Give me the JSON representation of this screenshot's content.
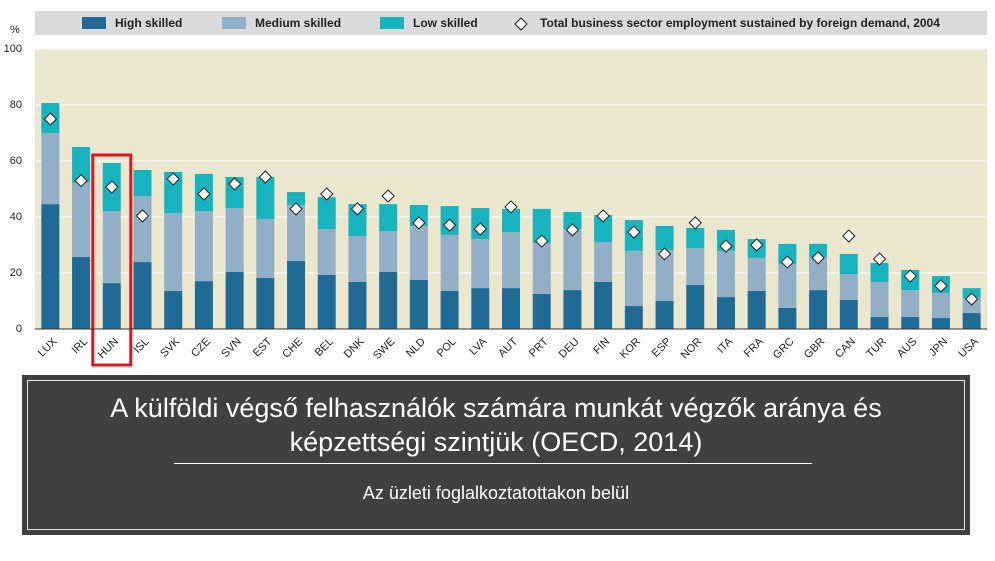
{
  "chart_data": {
    "type": "stacked_bar",
    "y_label": "%",
    "categories": [
      "LUX",
      "IRL",
      "HUN",
      "ISL",
      "SVK",
      "CZE",
      "SVN",
      "EST",
      "CHE",
      "BEL",
      "DNK",
      "SWE",
      "NLD",
      "POL",
      "LVA",
      "AUT",
      "PRT",
      "DEU",
      "FIN",
      "KOR",
      "ESP",
      "NOR",
      "ITA",
      "FRA",
      "GRC",
      "GBR",
      "CAN",
      "TUR",
      "AUS",
      "JPN",
      "USA"
    ],
    "series": [
      {
        "name": "High skilled",
        "color": "#1f6b96",
        "values": [
          44.6,
          25.7,
          16.4,
          23.9,
          13.6,
          17.1,
          20.4,
          18.2,
          24.3,
          19.3,
          16.8,
          20.4,
          17.5,
          13.6,
          14.6,
          14.6,
          12.5,
          13.9,
          16.8,
          8.2,
          10,
          15.7,
          11.4,
          13.6,
          7.5,
          13.9,
          10.4,
          4.3,
          4.3,
          3.9,
          5.7
        ]
      },
      {
        "name": "Medium skilled",
        "color": "#91afc6",
        "values": [
          25.4,
          26.5,
          25.7,
          23.6,
          27.8,
          25,
          22.8,
          21.1,
          20,
          16.4,
          16.4,
          14.6,
          19.3,
          20,
          17.5,
          20,
          18.2,
          21.8,
          14.3,
          19.7,
          18.2,
          13.2,
          16.5,
          11.8,
          15.7,
          11.8,
          9.2,
          12.5,
          9.6,
          9,
          5.4
        ]
      },
      {
        "name": "Low skilled",
        "color": "#17b3bf",
        "values": [
          10.7,
          12.8,
          17.2,
          9.3,
          14.7,
          13.3,
          11.1,
          15,
          4.6,
          11.4,
          11.4,
          9.6,
          7.5,
          10.3,
          11.1,
          8.3,
          12.2,
          6.1,
          9.6,
          11,
          8.6,
          7.2,
          7.5,
          6.7,
          7.2,
          4.7,
          7.2,
          6.8,
          7.2,
          6,
          3.5
        ]
      }
    ],
    "markers": {
      "name": "Total business sector employment sustained by foreign demand, 2004",
      "values": [
        75,
        53,
        50.7,
        40.4,
        53.6,
        48.2,
        51.8,
        54.3,
        42.9,
        48.2,
        42.9,
        47.5,
        37.9,
        37.1,
        35.7,
        43.6,
        31.4,
        35.4,
        40.4,
        34.6,
        26.8,
        37.9,
        29.6,
        30,
        23.9,
        25.4,
        33.2,
        25,
        18.9,
        15.4,
        10.7
      ]
    },
    "ylim": [
      0,
      100
    ],
    "yticks": [
      0,
      20,
      40,
      60,
      80,
      100
    ],
    "grid": true,
    "highlight": "HUN"
  },
  "caption": {
    "title": "A külföldi végső felhasználók számára munkát végzők aránya és képzettségi szintjük (OECD, 2014)",
    "subtitle": "Az üzleti foglalkoztatottakon belül"
  }
}
